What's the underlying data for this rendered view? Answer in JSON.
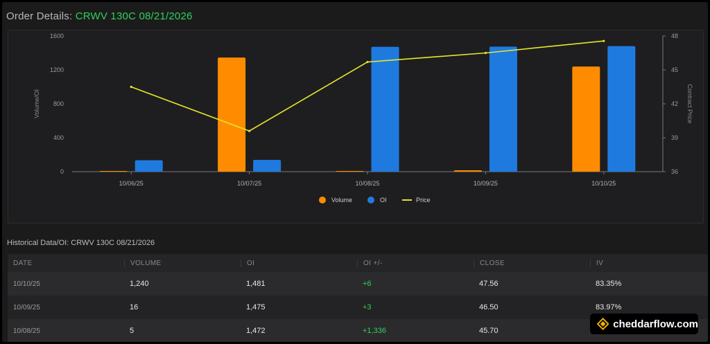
{
  "header": {
    "label": "Order Details:",
    "symbol": "CRWV 130C 08/21/2026"
  },
  "chart_data": {
    "type": "bar",
    "categories": [
      "10/06/25",
      "10/07/25",
      "10/08/25",
      "10/09/25",
      "10/10/25"
    ],
    "series": [
      {
        "name": "Volume",
        "type": "bar",
        "color": "#ff8c00",
        "values": [
          4,
          1346,
          5,
          16,
          1240
        ]
      },
      {
        "name": "OI",
        "type": "bar",
        "color": "#1f7ae0",
        "values": [
          135,
          139,
          1472,
          1475,
          1481
        ]
      },
      {
        "name": "Price",
        "type": "line",
        "color": "#e6e62e",
        "axis": "right",
        "values": [
          43.5,
          39.6,
          45.7,
          46.5,
          47.56
        ]
      }
    ],
    "ylabel": "Volume/OI",
    "y2label": "Contract Price",
    "ylim": [
      0,
      1600
    ],
    "y2lim": [
      36,
      48
    ],
    "yticks": [
      "0",
      "400",
      "800",
      "1200",
      "1600"
    ],
    "y2ticks": [
      "36",
      "39",
      "42",
      "45",
      "48"
    ],
    "legend_position": "bottom-center",
    "grid": false
  },
  "historical": {
    "title": "Historical Data/OI: CRWV 130C 08/21/2026",
    "columns": [
      "DATE",
      "VOLUME",
      "OI",
      "OI +/-",
      "CLOSE",
      "IV"
    ],
    "rows": [
      [
        "10/10/25",
        "1,240",
        "1,481",
        "+6",
        "47.56",
        "83.35%"
      ],
      [
        "10/09/25",
        "16",
        "1,475",
        "+3",
        "46.50",
        "83.97%"
      ],
      [
        "10/08/25",
        "5",
        "1,472",
        "+1,336",
        "45.70",
        ""
      ]
    ]
  },
  "brand": {
    "name": "cheddarflow.com",
    "icon": "cheddar-logo-icon",
    "color": "#f5b400"
  }
}
